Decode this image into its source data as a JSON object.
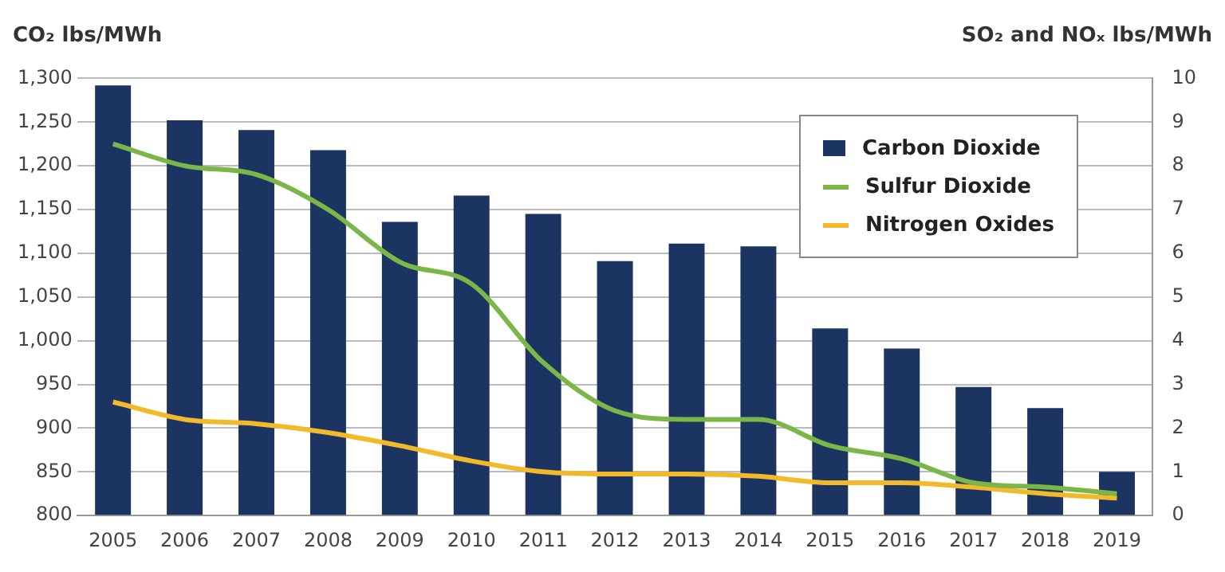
{
  "chart_data": {
    "type": "bar",
    "ylabel": "CO₂ lbs/MWh",
    "y2label": "SO₂ and NOₓ lbs/MWh",
    "categories": [
      "2005",
      "2006",
      "2007",
      "2008",
      "2009",
      "2010",
      "2011",
      "2012",
      "2013",
      "2014",
      "2015",
      "2016",
      "2017",
      "2018",
      "2019"
    ],
    "series": [
      {
        "name": "Carbon Dioxide",
        "color": "#1c3461",
        "values": [
          1292,
          1252,
          1241,
          1218,
          1136,
          1166,
          1145,
          1091,
          1111,
          1108,
          1014,
          991,
          947,
          923,
          850
        ]
      },
      {
        "name": "Sulfur Dioxide",
        "type": "line",
        "axis": "y2",
        "color": "#7ab648",
        "values": [
          8.5,
          8.0,
          7.8,
          7.0,
          5.8,
          5.3,
          3.5,
          2.4,
          2.2,
          2.2,
          1.6,
          1.3,
          0.75,
          0.65,
          0.5
        ]
      },
      {
        "name": "Nitrogen Oxides",
        "type": "line",
        "axis": "y2",
        "color": "#f2b92a",
        "values": [
          2.6,
          2.2,
          2.1,
          1.9,
          1.6,
          1.25,
          1.0,
          0.95,
          0.95,
          0.9,
          0.75,
          0.75,
          0.65,
          0.5,
          0.4
        ]
      }
    ],
    "ylim": [
      800,
      1300
    ],
    "yticks": [
      {
        "value": 800,
        "label": "800"
      },
      {
        "value": 850,
        "label": "850"
      },
      {
        "value": 900,
        "label": "900"
      },
      {
        "value": 950,
        "label": "950"
      },
      {
        "value": 1000,
        "label": "1,000"
      },
      {
        "value": 1050,
        "label": "1,050"
      },
      {
        "value": 1100,
        "label": "1,100"
      },
      {
        "value": 1150,
        "label": "1,150"
      },
      {
        "value": 1200,
        "label": "1,200"
      },
      {
        "value": 1250,
        "label": "1,250"
      },
      {
        "value": 1300,
        "label": "1,300"
      }
    ],
    "y2lim": [
      0,
      10
    ],
    "y2ticks": [
      0,
      1,
      2,
      3,
      4,
      5,
      6,
      7,
      8,
      9,
      10
    ],
    "grid": "y",
    "legend": "top right",
    "marker": "none",
    "line_style": "solid"
  }
}
